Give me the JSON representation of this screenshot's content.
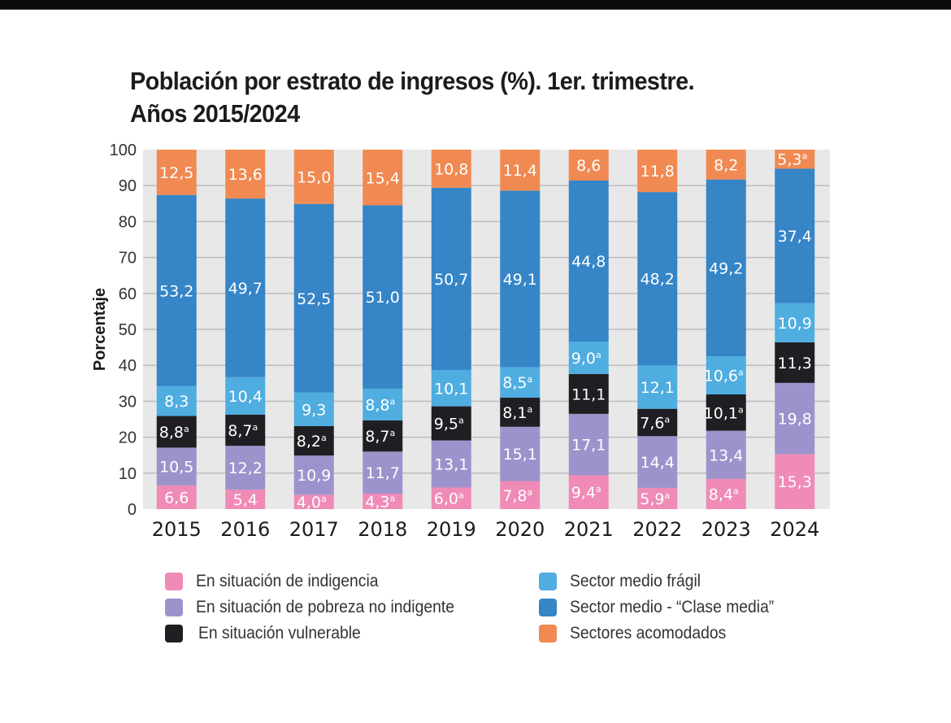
{
  "title_line1": "Población por estrato de ingresos (%). 1er. trimestre.",
  "title_line2": "Años 2015/2024",
  "chart_data": {
    "type": "bar",
    "stacked": true,
    "title": "Población por estrato de ingresos (%). 1er. trimestre. Años 2015/2024",
    "xlabel": "",
    "ylabel": "Porcentaje",
    "ylim": [
      0,
      100
    ],
    "yticks": [
      0,
      10,
      20,
      30,
      40,
      50,
      60,
      70,
      80,
      90,
      100
    ],
    "grid": true,
    "legend_position": "bottom",
    "categories": [
      "2015",
      "2016",
      "2017",
      "2018",
      "2019",
      "2020",
      "2021",
      "2022",
      "2023",
      "2024"
    ],
    "series": [
      {
        "name": "En situación de indigencia",
        "color": "#ef8bb6",
        "values": [
          6.6,
          5.4,
          4.0,
          4.3,
          6.0,
          7.8,
          9.4,
          5.9,
          8.4,
          15.3
        ],
        "labels": [
          "6,6",
          "5,4",
          "4,0ª",
          "4,3ª",
          "6,0ª",
          "7,8ª",
          "9,4ª",
          "5,9ª",
          "8,4ª",
          "15,3"
        ]
      },
      {
        "name": "En situación de pobreza no indigente",
        "color": "#9d93cc",
        "values": [
          10.5,
          12.2,
          10.9,
          11.7,
          13.1,
          15.1,
          17.1,
          14.4,
          13.4,
          19.8
        ],
        "labels": [
          "10,5",
          "12,2",
          "10,9",
          "11,7",
          "13,1",
          "15,1",
          "17,1",
          "14,4",
          "13,4",
          "19,8"
        ]
      },
      {
        "name": "En situación vulnerable",
        "color": "#1f1f23",
        "values": [
          8.8,
          8.7,
          8.2,
          8.7,
          9.5,
          8.1,
          11.1,
          7.6,
          10.1,
          11.3
        ],
        "labels": [
          "8,8ª",
          "8,7ª",
          "8,2ª",
          "8,7ª",
          "9,5ª",
          "8,1ª",
          "11,1",
          "7,6ª",
          "10,1ª",
          "11,3"
        ]
      },
      {
        "name": "Sector medio frágil",
        "color": "#4fade0",
        "values": [
          8.3,
          10.4,
          9.3,
          8.8,
          10.1,
          8.5,
          9.0,
          12.1,
          10.6,
          10.9
        ],
        "labels": [
          "8,3",
          "10,4",
          "9,3",
          "8,8ª",
          "10,1",
          "8,5ª",
          "9,0ª",
          "12,1",
          "10,6ª",
          "10,9"
        ]
      },
      {
        "name": "Sector medio - “Clase media”",
        "color": "#3585c7",
        "values": [
          53.2,
          49.7,
          52.5,
          51.0,
          50.7,
          49.1,
          44.8,
          48.2,
          49.2,
          37.4
        ],
        "labels": [
          "53,2",
          "49,7",
          "52,5",
          "51,0",
          "50,7",
          "49,1",
          "44,8",
          "48,2",
          "49,2",
          "37,4"
        ]
      },
      {
        "name": "Sectores acomodados",
        "color": "#f08a52",
        "values": [
          12.5,
          13.6,
          15.0,
          15.4,
          10.8,
          11.4,
          8.6,
          11.8,
          8.2,
          5.3
        ],
        "labels": [
          "12,5",
          "13,6",
          "15,0",
          "15,4",
          "10,8",
          "11,4",
          "8,6",
          "11,8",
          "8,2",
          "5,3ª"
        ]
      }
    ]
  },
  "legend": {
    "left": [
      {
        "label": "En situación de indigencia",
        "color": "#ef8bb6"
      },
      {
        "label": "En situación de pobreza no indigente",
        "color": "#9d93cc"
      },
      {
        "label": "En situación vulnerable",
        "color": "#1f1f23"
      }
    ],
    "right": [
      {
        "label": "Sector medio frágil",
        "color": "#4fade0"
      },
      {
        "label": "Sector medio - “Clase media”",
        "color": "#3585c7"
      },
      {
        "label": "Sectores acomodados",
        "color": "#f08a52"
      }
    ]
  }
}
